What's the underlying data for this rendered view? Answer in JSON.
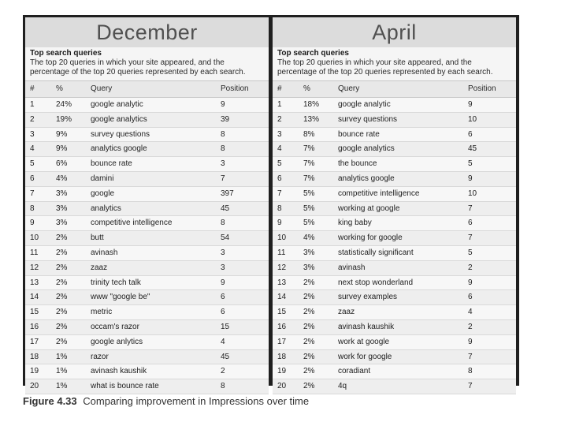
{
  "december": {
    "title": "December",
    "subtitle": "Top search queries",
    "description_line1": "The top 20 queries in which your site appeared, and the",
    "description_line2": "percentage of the top 20 queries represented by each search.",
    "columns": [
      "#",
      "%",
      "Query",
      "Position"
    ],
    "rows": [
      {
        "num": "1",
        "pct": "24%",
        "query": "google analytic",
        "pos": "9"
      },
      {
        "num": "2",
        "pct": "19%",
        "query": "google analytics",
        "pos": "39"
      },
      {
        "num": "3",
        "pct": "9%",
        "query": "survey questions",
        "pos": "8"
      },
      {
        "num": "4",
        "pct": "9%",
        "query": "analytics google",
        "pos": "8"
      },
      {
        "num": "5",
        "pct": "6%",
        "query": "bounce rate",
        "pos": "3"
      },
      {
        "num": "6",
        "pct": "4%",
        "query": "damini",
        "pos": "7"
      },
      {
        "num": "7",
        "pct": "3%",
        "query": "google",
        "pos": "397"
      },
      {
        "num": "8",
        "pct": "3%",
        "query": "analytics",
        "pos": "45"
      },
      {
        "num": "9",
        "pct": "3%",
        "query": "competitive intelligence",
        "pos": "8"
      },
      {
        "num": "10",
        "pct": "2%",
        "query": "butt",
        "pos": "54"
      },
      {
        "num": "11",
        "pct": "2%",
        "query": "avinash",
        "pos": "3"
      },
      {
        "num": "12",
        "pct": "2%",
        "query": "zaaz",
        "pos": "3"
      },
      {
        "num": "13",
        "pct": "2%",
        "query": "trinity tech talk",
        "pos": "9"
      },
      {
        "num": "14",
        "pct": "2%",
        "query": "www \"google be\"",
        "pos": "6"
      },
      {
        "num": "15",
        "pct": "2%",
        "query": "metric",
        "pos": "6"
      },
      {
        "num": "16",
        "pct": "2%",
        "query": "occam's razor",
        "pos": "15"
      },
      {
        "num": "17",
        "pct": "2%",
        "query": "google anlytics",
        "pos": "4"
      },
      {
        "num": "18",
        "pct": "1%",
        "query": "razor",
        "pos": "45"
      },
      {
        "num": "19",
        "pct": "1%",
        "query": "avinash kaushik",
        "pos": "2"
      },
      {
        "num": "20",
        "pct": "1%",
        "query": "what is bounce rate",
        "pos": "8"
      }
    ]
  },
  "april": {
    "title": "April",
    "subtitle": "Top search queries",
    "description_line1": "The top 20 queries in which your site appeared, and the",
    "description_line2": "percentage of the top 20 queries represented by each search.",
    "columns": [
      "#",
      "%",
      "Query",
      "Position"
    ],
    "rows": [
      {
        "num": "1",
        "pct": "18%",
        "query": "google analytic",
        "pos": "9"
      },
      {
        "num": "2",
        "pct": "13%",
        "query": "survey questions",
        "pos": "10"
      },
      {
        "num": "3",
        "pct": "8%",
        "query": "bounce rate",
        "pos": "6"
      },
      {
        "num": "4",
        "pct": "7%",
        "query": "google analytics",
        "pos": "45"
      },
      {
        "num": "5",
        "pct": "7%",
        "query": "the bounce",
        "pos": "5"
      },
      {
        "num": "6",
        "pct": "7%",
        "query": "analytics google",
        "pos": "9"
      },
      {
        "num": "7",
        "pct": "5%",
        "query": "competitive intelligence",
        "pos": "10"
      },
      {
        "num": "8",
        "pct": "5%",
        "query": "working at google",
        "pos": "7"
      },
      {
        "num": "9",
        "pct": "5%",
        "query": "king baby",
        "pos": "6"
      },
      {
        "num": "10",
        "pct": "4%",
        "query": "working for google",
        "pos": "7"
      },
      {
        "num": "11",
        "pct": "3%",
        "query": "statistically significant",
        "pos": "5"
      },
      {
        "num": "12",
        "pct": "3%",
        "query": "avinash",
        "pos": "2"
      },
      {
        "num": "13",
        "pct": "2%",
        "query": "next stop wonderland",
        "pos": "9"
      },
      {
        "num": "14",
        "pct": "2%",
        "query": "survey examples",
        "pos": "6"
      },
      {
        "num": "15",
        "pct": "2%",
        "query": "zaaz",
        "pos": "4"
      },
      {
        "num": "16",
        "pct": "2%",
        "query": "avinash kaushik",
        "pos": "2"
      },
      {
        "num": "17",
        "pct": "2%",
        "query": "work at google",
        "pos": "9"
      },
      {
        "num": "18",
        "pct": "2%",
        "query": "work for google",
        "pos": "7"
      },
      {
        "num": "19",
        "pct": "2%",
        "query": "coradiant",
        "pos": "8"
      },
      {
        "num": "20",
        "pct": "2%",
        "query": "4q",
        "pos": "7"
      }
    ]
  },
  "caption": {
    "label": "Figure 4.33",
    "text": "Comparing improvement in Impressions over time"
  }
}
